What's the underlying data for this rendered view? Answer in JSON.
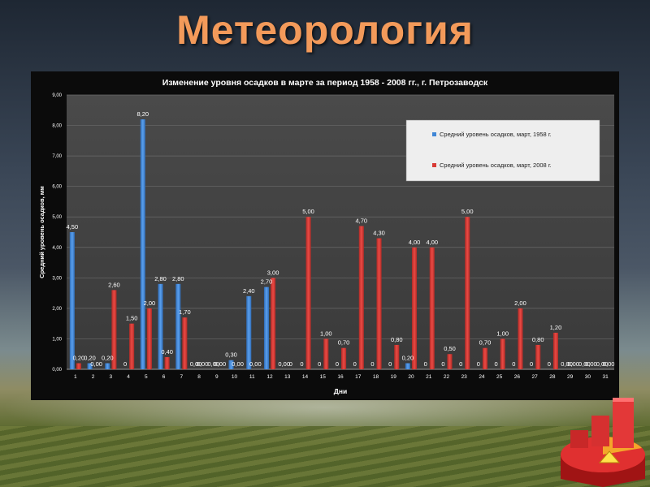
{
  "slide": {
    "title": "Метеорология"
  },
  "chart_data": {
    "type": "bar",
    "title": "Изменение уровня осадков в марте за период 1958 - 2008 гг., г. Петрозаводск",
    "xlabel": "Дни",
    "ylabel": "Средний уровень осадков, мм",
    "ylim": [
      0,
      9
    ],
    "yticks": [
      "0,00",
      "1,00",
      "2,00",
      "3,00",
      "4,00",
      "5,00",
      "6,00",
      "7,00",
      "8,00",
      "9,00"
    ],
    "categories": [
      "1",
      "2",
      "3",
      "4",
      "5",
      "6",
      "7",
      "8",
      "9",
      "10",
      "11",
      "12",
      "13",
      "14",
      "15",
      "16",
      "17",
      "18",
      "19",
      "20",
      "21",
      "22",
      "23",
      "24",
      "25",
      "26",
      "27",
      "28",
      "29",
      "30",
      "31"
    ],
    "legend_position": "top-right",
    "grid": true,
    "series": [
      {
        "name": "Средний уровень осадков, март, 1958 г.",
        "color": "#3f86d6",
        "values": [
          4.5,
          0.2,
          0.2,
          0,
          8.2,
          2.8,
          2.8,
          0,
          0,
          0.3,
          2.4,
          2.7,
          0,
          0,
          0,
          0,
          0,
          0,
          0,
          0.2,
          0,
          0,
          0,
          0,
          0,
          0,
          0,
          0,
          0,
          0,
          0
        ],
        "labels": [
          "4,50",
          "0,20",
          "0,20",
          "0",
          "8,20",
          "2,80",
          "2,80",
          "0,00",
          "0,00",
          "0,30",
          "2,40",
          "2,70",
          "0,00",
          "0",
          "0",
          "0",
          "0",
          "0",
          "0",
          "0,20",
          "0",
          "0",
          "0",
          "0",
          "0",
          "0",
          "0",
          "0",
          "0,00",
          "0,00",
          "0,00"
        ]
      },
      {
        "name": "Средний уровень осадков, март, 2008 г.",
        "color": "#d83a35",
        "values": [
          0.2,
          0,
          2.6,
          1.5,
          2,
          0.4,
          1.7,
          0,
          0,
          0,
          0,
          3,
          0,
          5,
          1,
          0.7,
          4.7,
          4.3,
          0.8,
          4,
          4,
          0.5,
          5,
          0.7,
          1,
          2,
          0.8,
          1.2,
          0,
          0,
          0
        ],
        "labels": [
          "0,20",
          "0,00",
          "2,60",
          "1,50",
          "2,00",
          "0,40",
          "1,70",
          "0,00",
          "0,00",
          "0,00",
          "0,00",
          "3,00",
          "0",
          "5,00",
          "1,00",
          "0,70",
          "4,70",
          "4,30",
          "0,80",
          "4,00",
          "4,00",
          "0,50",
          "5,00",
          "0,70",
          "1,00",
          "2,00",
          "0,80",
          "1,20",
          "0,00",
          "0,00",
          "0,00"
        ]
      }
    ]
  }
}
